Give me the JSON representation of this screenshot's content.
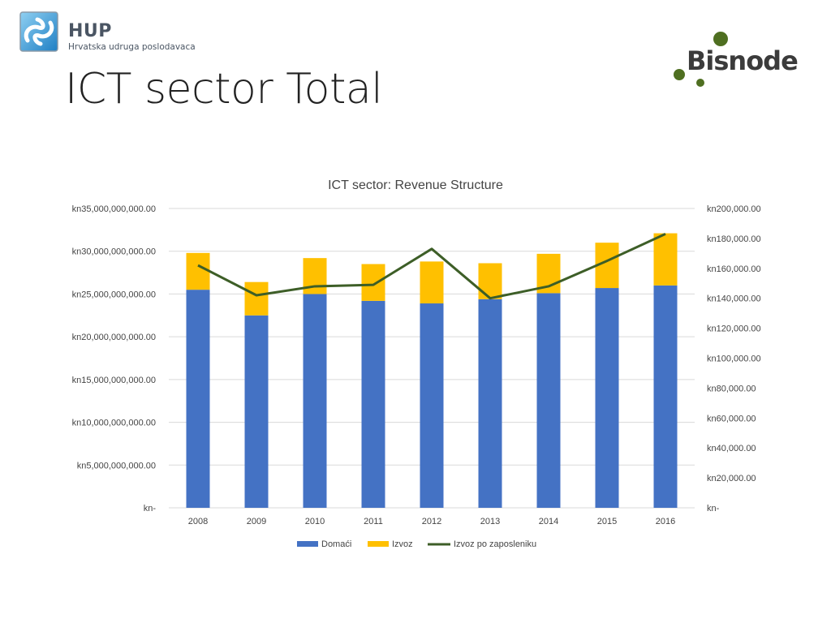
{
  "header": {
    "logo_name": "HUP",
    "logo_subtitle": "Hrvatska udruga poslodavaca",
    "title": "ICT sector Total",
    "partner_logo": "Bisnode"
  },
  "colors": {
    "domaci": "#4472C4",
    "izvoz": "#FFC000",
    "line": "#3D5E27",
    "grid": "#D9D9D9"
  },
  "chart_data": {
    "type": "bar",
    "stacked": true,
    "title": "ICT sector: Revenue Structure",
    "categories": [
      "2008",
      "2009",
      "2010",
      "2011",
      "2012",
      "2013",
      "2014",
      "2015",
      "2016"
    ],
    "series": [
      {
        "name": "Domaći",
        "type": "bar",
        "axis": "left",
        "values": [
          25500000000,
          22500000000,
          25000000000,
          24200000000,
          23900000000,
          24400000000,
          25100000000,
          25700000000,
          26000000000
        ]
      },
      {
        "name": "Izvoz",
        "type": "bar",
        "axis": "left",
        "values": [
          4300000000,
          3900000000,
          4200000000,
          4300000000,
          4900000000,
          4200000000,
          4600000000,
          5300000000,
          6100000000
        ]
      },
      {
        "name": "Izvoz po zaposleniku",
        "type": "line",
        "axis": "right",
        "values": [
          162000,
          142000,
          148000,
          149000,
          173000,
          140000,
          148000,
          165000,
          183000
        ]
      }
    ],
    "y_left": {
      "min": 0,
      "max": 35000000000,
      "ticks": [
        0,
        5000000000,
        10000000000,
        15000000000,
        20000000000,
        25000000000,
        30000000000,
        35000000000
      ],
      "tick_labels": [
        "kn-",
        "kn5,000,000,000.00",
        "kn10,000,000,000.00",
        "kn15,000,000,000.00",
        "kn20,000,000,000.00",
        "kn25,000,000,000.00",
        "kn30,000,000,000.00",
        "kn35,000,000,000.00"
      ]
    },
    "y_right": {
      "min": 0,
      "max": 200000,
      "ticks": [
        0,
        20000,
        40000,
        60000,
        80000,
        100000,
        120000,
        140000,
        160000,
        180000,
        200000
      ],
      "tick_labels": [
        "kn-",
        "kn20,000.00",
        "kn40,000.00",
        "kn60,000.00",
        "kn80,000.00",
        "kn100,000.00",
        "kn120,000.00",
        "kn140,000.00",
        "kn160,000.00",
        "kn180,000.00",
        "kn200,000.00"
      ]
    },
    "grid": true,
    "legend_position": "bottom"
  }
}
